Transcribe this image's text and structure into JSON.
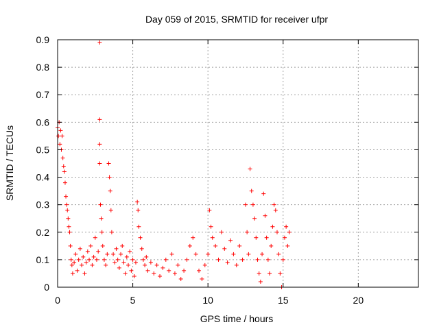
{
  "chart_data": {
    "type": "scatter",
    "title": "Day 059 of 2015, SRMTID for receiver ufpr",
    "xlabel": "GPS time / hours",
    "ylabel": "SRMTID / TECUs",
    "xlim": [
      0,
      24
    ],
    "ylim": [
      0,
      0.9
    ],
    "xticks": [
      0,
      5,
      10,
      15,
      20
    ],
    "yticks": [
      0,
      0.1,
      0.2,
      0.3,
      0.4,
      0.5,
      0.6,
      0.7,
      0.8,
      0.9
    ],
    "xtick_labels": [
      "0",
      "5",
      "10",
      "15",
      "20"
    ],
    "ytick_labels": [
      "0",
      "0.1",
      "0.2",
      "0.3",
      "0.4",
      "0.5",
      "0.6",
      "0.7",
      "0.8",
      "0.9"
    ],
    "grid": true,
    "marker": "+",
    "color": "#ff0000",
    "series": [
      {
        "name": "SRMTID",
        "points": [
          [
            0.0,
            0.58
          ],
          [
            0.05,
            0.55
          ],
          [
            0.1,
            0.6
          ],
          [
            0.15,
            0.52
          ],
          [
            0.2,
            0.57
          ],
          [
            0.25,
            0.5
          ],
          [
            0.3,
            0.55
          ],
          [
            0.35,
            0.47
          ],
          [
            0.4,
            0.44
          ],
          [
            0.45,
            0.42
          ],
          [
            0.5,
            0.38
          ],
          [
            0.55,
            0.33
          ],
          [
            0.6,
            0.3
          ],
          [
            0.65,
            0.28
          ],
          [
            0.7,
            0.25
          ],
          [
            0.75,
            0.22
          ],
          [
            0.8,
            0.2
          ],
          [
            0.85,
            0.15
          ],
          [
            0.9,
            0.1
          ],
          [
            0.95,
            0.08
          ],
          [
            1.0,
            0.05
          ],
          [
            1.1,
            0.09
          ],
          [
            1.2,
            0.12
          ],
          [
            1.3,
            0.06
          ],
          [
            1.4,
            0.1
          ],
          [
            1.5,
            0.14
          ],
          [
            1.6,
            0.08
          ],
          [
            1.7,
            0.11
          ],
          [
            1.8,
            0.05
          ],
          [
            1.9,
            0.09
          ],
          [
            2.0,
            0.13
          ],
          [
            2.1,
            0.1
          ],
          [
            2.2,
            0.15
          ],
          [
            2.3,
            0.08
          ],
          [
            2.4,
            0.11
          ],
          [
            2.5,
            0.18
          ],
          [
            2.6,
            0.1
          ],
          [
            2.7,
            0.13
          ],
          [
            2.8,
            0.89
          ],
          [
            2.8,
            0.61
          ],
          [
            2.8,
            0.52
          ],
          [
            2.8,
            0.45
          ],
          [
            2.85,
            0.3
          ],
          [
            2.9,
            0.25
          ],
          [
            2.95,
            0.2
          ],
          [
            3.0,
            0.15
          ],
          [
            3.1,
            0.1
          ],
          [
            3.2,
            0.08
          ],
          [
            3.3,
            0.12
          ],
          [
            3.4,
            0.45
          ],
          [
            3.45,
            0.4
          ],
          [
            3.5,
            0.35
          ],
          [
            3.55,
            0.28
          ],
          [
            3.6,
            0.2
          ],
          [
            3.7,
            0.12
          ],
          [
            3.8,
            0.09
          ],
          [
            3.9,
            0.14
          ],
          [
            4.0,
            0.1
          ],
          [
            4.1,
            0.07
          ],
          [
            4.2,
            0.12
          ],
          [
            4.3,
            0.15
          ],
          [
            4.4,
            0.09
          ],
          [
            4.5,
            0.05
          ],
          [
            4.6,
            0.11
          ],
          [
            4.7,
            0.08
          ],
          [
            4.8,
            0.13
          ],
          [
            4.9,
            0.06
          ],
          [
            5.0,
            0.1
          ],
          [
            5.1,
            0.04
          ],
          [
            5.2,
            0.09
          ],
          [
            5.3,
            0.31
          ],
          [
            5.35,
            0.28
          ],
          [
            5.4,
            0.22
          ],
          [
            5.5,
            0.18
          ],
          [
            5.6,
            0.14
          ],
          [
            5.7,
            0.1
          ],
          [
            5.8,
            0.08
          ],
          [
            5.9,
            0.11
          ],
          [
            6.0,
            0.06
          ],
          [
            6.2,
            0.09
          ],
          [
            6.4,
            0.05
          ],
          [
            6.6,
            0.08
          ],
          [
            6.8,
            0.04
          ],
          [
            7.0,
            0.07
          ],
          [
            7.2,
            0.1
          ],
          [
            7.4,
            0.06
          ],
          [
            7.6,
            0.12
          ],
          [
            7.8,
            0.05
          ],
          [
            8.0,
            0.08
          ],
          [
            8.2,
            0.03
          ],
          [
            8.4,
            0.06
          ],
          [
            8.6,
            0.1
          ],
          [
            8.8,
            0.15
          ],
          [
            9.0,
            0.18
          ],
          [
            9.2,
            0.12
          ],
          [
            9.4,
            0.06
          ],
          [
            9.6,
            0.03
          ],
          [
            9.8,
            0.08
          ],
          [
            10.0,
            0.12
          ],
          [
            10.1,
            0.28
          ],
          [
            10.2,
            0.22
          ],
          [
            10.3,
            0.18
          ],
          [
            10.5,
            0.15
          ],
          [
            10.7,
            0.1
          ],
          [
            10.9,
            0.2
          ],
          [
            11.1,
            0.14
          ],
          [
            11.3,
            0.09
          ],
          [
            11.5,
            0.17
          ],
          [
            11.7,
            0.12
          ],
          [
            11.9,
            0.08
          ],
          [
            12.1,
            0.15
          ],
          [
            12.3,
            0.1
          ],
          [
            12.5,
            0.3
          ],
          [
            12.6,
            0.2
          ],
          [
            12.7,
            0.12
          ],
          [
            12.8,
            0.43
          ],
          [
            12.9,
            0.35
          ],
          [
            13.0,
            0.3
          ],
          [
            13.1,
            0.25
          ],
          [
            13.2,
            0.18
          ],
          [
            13.3,
            0.1
          ],
          [
            13.4,
            0.05
          ],
          [
            13.5,
            0.02
          ],
          [
            13.6,
            0.12
          ],
          [
            13.7,
            0.34
          ],
          [
            13.8,
            0.26
          ],
          [
            13.9,
            0.18
          ],
          [
            14.0,
            0.1
          ],
          [
            14.1,
            0.05
          ],
          [
            14.2,
            0.15
          ],
          [
            14.3,
            0.22
          ],
          [
            14.4,
            0.3
          ],
          [
            14.5,
            0.28
          ],
          [
            14.6,
            0.2
          ],
          [
            14.7,
            0.12
          ],
          [
            14.8,
            0.05
          ],
          [
            14.9,
            0.0
          ],
          [
            15.0,
            0.1
          ],
          [
            15.1,
            0.18
          ],
          [
            15.2,
            0.22
          ],
          [
            15.3,
            0.15
          ],
          [
            15.4,
            0.2
          ]
        ]
      }
    ]
  }
}
